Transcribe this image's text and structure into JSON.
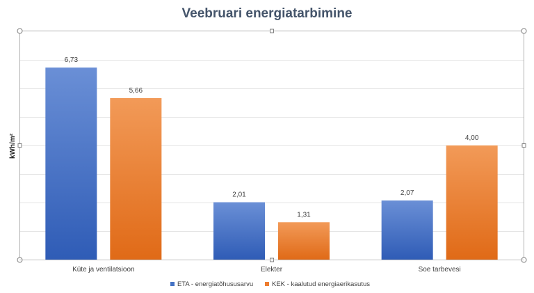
{
  "chart_data": {
    "type": "bar",
    "title": "Veebruari energiatarbimine",
    "ylabel": "kWh/m²",
    "xlabel": "",
    "categories": [
      "Küte ja ventilatsioon",
      "Elekter",
      "Soe tarbevesi"
    ],
    "series": [
      {
        "name": "ETA - energiatõhususarvu",
        "values": [
          6.73,
          2.01,
          2.07
        ],
        "color": "#4472c4",
        "labels": [
          "6,73",
          "2,01",
          "2,07"
        ]
      },
      {
        "name": "KEK - kaalutud energiaerikasutus",
        "values": [
          5.66,
          1.31,
          4.0
        ],
        "color": "#ed7d31",
        "labels": [
          "5,66",
          "1,31",
          "4,00"
        ]
      }
    ],
    "ylim": [
      0,
      8
    ],
    "grid": true,
    "legend": "bottom"
  }
}
